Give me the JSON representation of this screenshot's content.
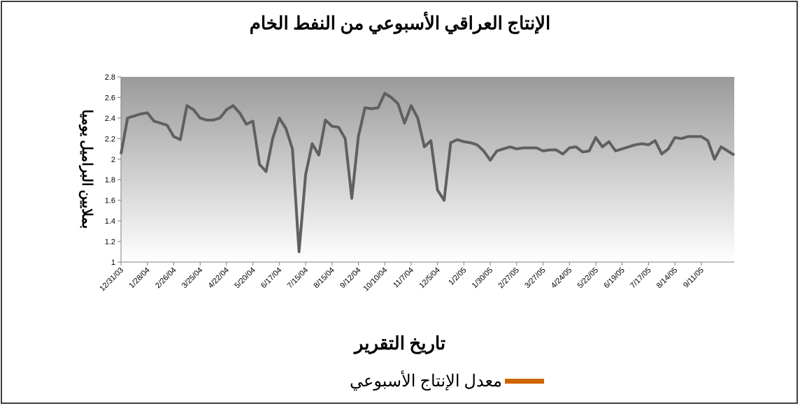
{
  "chart_data": {
    "type": "line",
    "title": "الإنتاج العراقي الأسبوعي من النفط الخام",
    "x_label": "تاريخ التقرير",
    "y_label": "بملايين البراميل يوميا",
    "categories": [
      "12/31/03",
      null,
      null,
      null,
      "1/28/04",
      null,
      null,
      null,
      "2/26/04",
      null,
      null,
      null,
      "3/25/04",
      null,
      null,
      null,
      "4/22/04",
      null,
      null,
      null,
      "5/20/04",
      null,
      null,
      null,
      "6/17/04",
      null,
      null,
      null,
      "7/15/04",
      null,
      null,
      null,
      "8/15/04",
      null,
      null,
      null,
      "9/12/04",
      null,
      null,
      null,
      "10/10/04",
      null,
      null,
      null,
      "11/7/04",
      null,
      null,
      null,
      "12/5/04",
      null,
      null,
      null,
      "1/2/05",
      null,
      null,
      null,
      "1/30/05",
      null,
      null,
      null,
      "2/27/05",
      null,
      null,
      null,
      "3/27/05",
      null,
      null,
      null,
      "4/24/05",
      null,
      null,
      null,
      "5/22/05",
      null,
      null,
      null,
      "6/19/05",
      null,
      null,
      null,
      "7/17/05",
      null,
      null,
      null,
      "8/14/05",
      null,
      null,
      null,
      "9/11/05",
      null,
      null,
      null,
      null,
      null
    ],
    "series": [
      {
        "name": "معدل الإنتاج الأسبوعي",
        "color": "#606060",
        "values": [
          2.05,
          2.4,
          2.42,
          2.44,
          2.45,
          2.37,
          2.35,
          2.33,
          2.22,
          2.19,
          2.52,
          2.48,
          2.4,
          2.38,
          2.38,
          2.4,
          2.48,
          2.52,
          2.45,
          2.34,
          2.37,
          1.95,
          1.88,
          2.2,
          2.4,
          2.3,
          2.1,
          1.1,
          1.85,
          2.15,
          2.04,
          2.38,
          2.32,
          2.31,
          2.2,
          1.62,
          2.22,
          2.5,
          2.49,
          2.5,
          2.64,
          2.6,
          2.54,
          2.35,
          2.52,
          2.4,
          2.12,
          2.18,
          1.7,
          1.6,
          2.16,
          2.19,
          2.17,
          2.16,
          2.14,
          2.08,
          1.99,
          2.08,
          2.1,
          2.12,
          2.1,
          2.11,
          2.11,
          2.11,
          2.08,
          2.09,
          2.09,
          2.05,
          2.11,
          2.12,
          2.07,
          2.08,
          2.21,
          2.12,
          2.17,
          2.08,
          2.1,
          2.12,
          2.14,
          2.15,
          2.14,
          2.18,
          2.05,
          2.1,
          2.21,
          2.2,
          2.22,
          2.22,
          2.22,
          2.18,
          2.0,
          2.12,
          2.08,
          2.04
        ]
      }
    ],
    "legend_swatch_color": "#cc6600",
    "ylim": [
      1,
      2.8
    ],
    "yticks": [
      1,
      1.2,
      1.4,
      1.6,
      1.8,
      2,
      2.2,
      2.4,
      2.6,
      2.8
    ]
  }
}
